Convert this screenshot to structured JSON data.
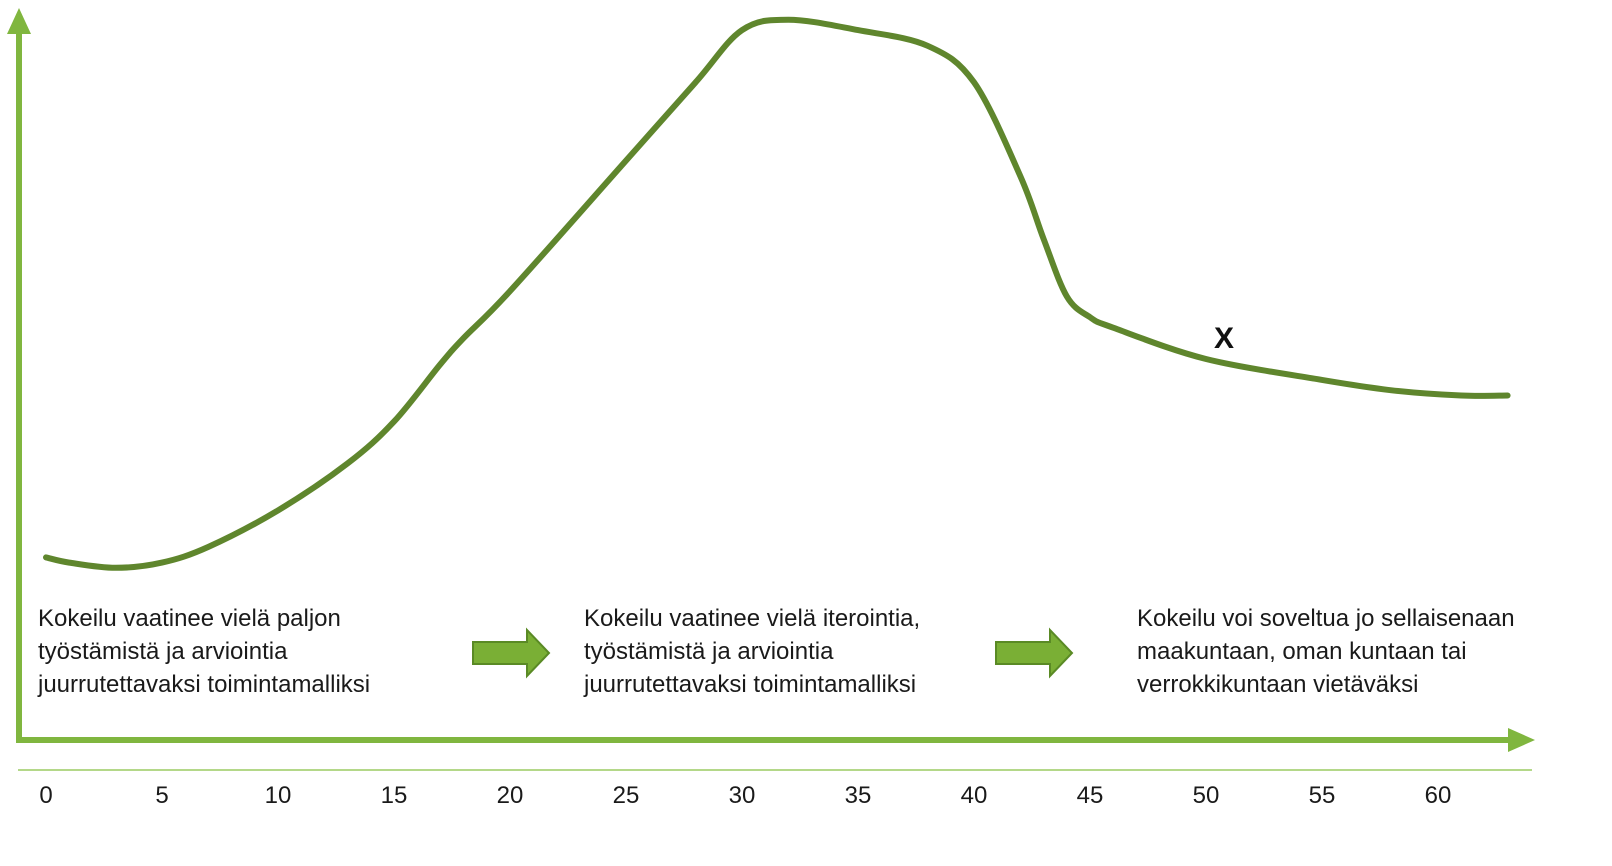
{
  "colors": {
    "axis": "#80b63f",
    "curve": "#5f862d",
    "stage_arrow_fill": "#7aaf35",
    "stage_arrow_stroke": "#5a8a25",
    "text": "#1a1a1a"
  },
  "curve_points": [
    [
      0,
      0.12
    ],
    [
      1,
      0.11
    ],
    [
      3,
      0.1
    ],
    [
      5,
      0.11
    ],
    [
      7,
      0.14
    ],
    [
      10,
      0.21
    ],
    [
      13,
      0.3
    ],
    [
      15,
      0.38
    ],
    [
      17,
      0.49
    ],
    [
      18,
      0.54
    ],
    [
      20,
      0.63
    ],
    [
      25,
      0.88
    ],
    [
      28,
      1.03
    ],
    [
      30,
      1.13
    ],
    [
      32,
      1.15
    ],
    [
      35,
      1.13
    ],
    [
      38,
      1.1
    ],
    [
      40,
      1.03
    ],
    [
      42,
      0.85
    ],
    [
      43,
      0.73
    ],
    [
      44,
      0.62
    ],
    [
      45,
      0.58
    ],
    [
      46,
      0.56
    ],
    [
      50,
      0.5
    ],
    [
      55,
      0.46
    ],
    [
      58,
      0.44
    ],
    [
      61,
      0.43
    ],
    [
      63,
      0.43
    ]
  ],
  "marker": {
    "label": "X"
  },
  "stages": [
    {
      "text": "Kokeilu vaatinee vielä paljon\ntyöstämistä ja arviointia\njuurrutettavaksi toimintamalliksi"
    },
    {
      "text": "Kokeilu vaatinee vielä iterointia,\ntyöstämistä ja arviointia\njuurrutettavaksi toimintamalliksi"
    },
    {
      "text": "Kokeilu voi soveltua jo sellaisenaan\nmaakuntaan, oman kuntaan tai\nverrokkikuntaan vietäväksi"
    }
  ],
  "x_axis": {
    "ticks": [
      "0",
      "5",
      "10",
      "15",
      "20",
      "25",
      "30",
      "35",
      "40",
      "45",
      "50",
      "55",
      "60"
    ]
  }
}
